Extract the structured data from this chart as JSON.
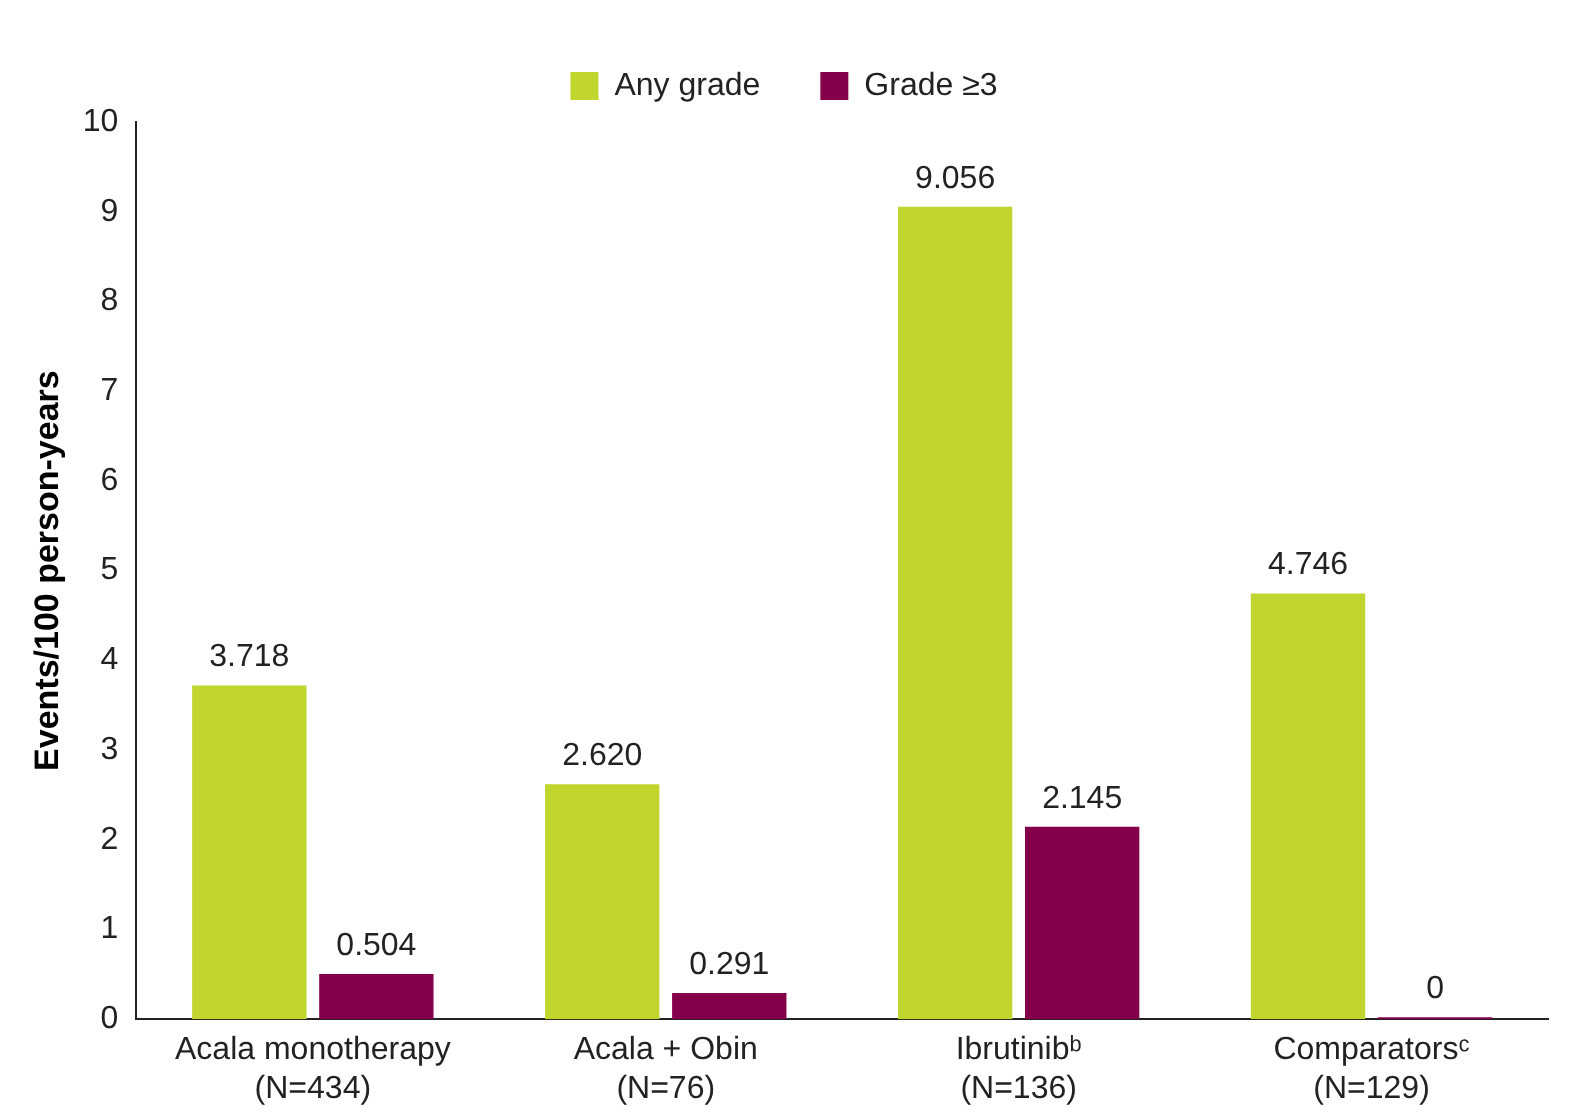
{
  "chart_data": {
    "type": "bar",
    "ylabel": "Events/100 person-years",
    "categories": [
      "Acala monotherapy\n(N=434)",
      "Acala + Obin\n(N=76)",
      "Ibrutinibᵇ\n(N=136)",
      "Comparatorsᶜ\n(N=129)"
    ],
    "series": [
      {
        "name": "Any grade",
        "color": "#c0d62f",
        "values": [
          3.718,
          2.62,
          9.056,
          4.746
        ],
        "value_labels": [
          "3.718",
          "2.620",
          "9.056",
          "4.746"
        ]
      },
      {
        "name": "Grade ≥3",
        "color": "#85004b",
        "values": [
          0.504,
          0.291,
          2.145,
          0
        ],
        "value_labels": [
          "0.504",
          "0.291",
          "2.145",
          "0"
        ]
      }
    ],
    "ylim": [
      0,
      10
    ],
    "yticks": [
      0,
      1,
      2,
      3,
      4,
      5,
      6,
      7,
      8,
      9,
      10
    ],
    "grid": false,
    "legend": "top"
  }
}
